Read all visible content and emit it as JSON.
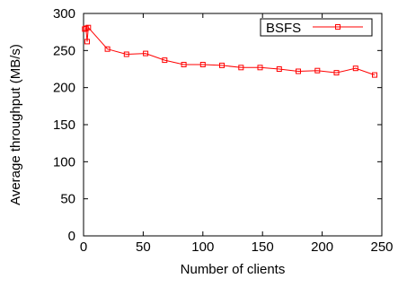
{
  "chart_data": {
    "type": "line",
    "xlabel": "Number of clients",
    "ylabel": "Average throughput (MB/s)",
    "xlim": [
      0,
      250
    ],
    "ylim": [
      0,
      300
    ],
    "xticks": [
      "0",
      "50",
      "100",
      "150",
      "200",
      "250"
    ],
    "yticks": [
      "0",
      "50",
      "100",
      "150",
      "200",
      "250",
      "300"
    ],
    "grid": false,
    "legend_position": "top-right",
    "series": [
      {
        "name": "BSFS",
        "color": "#ff0000",
        "marker": "square",
        "x": [
          1,
          2,
          3,
          4,
          20,
          36,
          52,
          68,
          84,
          100,
          116,
          132,
          148,
          164,
          180,
          196,
          212,
          228,
          244
        ],
        "y": [
          279,
          280,
          262,
          281,
          252,
          245,
          246,
          237,
          231,
          231,
          230,
          227,
          227,
          225,
          222,
          223,
          220,
          226,
          217
        ]
      }
    ]
  }
}
